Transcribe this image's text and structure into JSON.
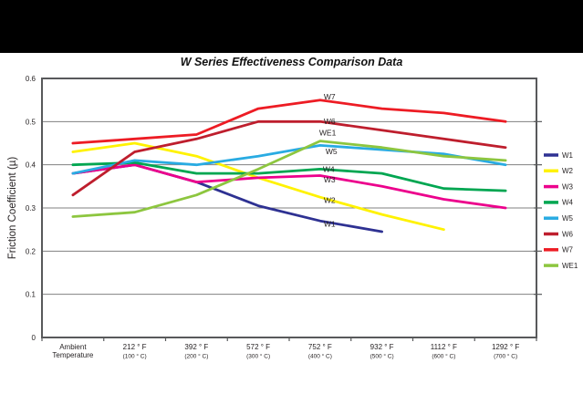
{
  "page": {
    "top_bar_color": "#000000",
    "background": "#ffffff"
  },
  "chart_data": {
    "type": "line",
    "title": "W Series Effectiveness Comparison Data",
    "xlabel": "",
    "ylabel": "Friction Coefficient (µ)",
    "ylim": [
      0,
      0.6
    ],
    "yticks": [
      "0",
      "0.1",
      "0.2",
      "0.3",
      "0.4",
      "0.5",
      "0.6"
    ],
    "grid": "horizontal",
    "legend_position": "right",
    "colors": {
      "grid": "#808080",
      "border": "#58595B",
      "text": "#231F20"
    },
    "categories": [
      {
        "l1": "Ambient",
        "l2": "Temperature",
        "small": false
      },
      {
        "l1": "212 ° F",
        "l2": "(100 ° C)",
        "small": true
      },
      {
        "l1": "392 ° F",
        "l2": "(200 ° C)",
        "small": true
      },
      {
        "l1": "572 ° F",
        "l2": "(300 ° C)",
        "small": true
      },
      {
        "l1": "752 ° F",
        "l2": "(400 ° C)",
        "small": true
      },
      {
        "l1": "932 ° F",
        "l2": "(500 ° C)",
        "small": true
      },
      {
        "l1": "1112 ° F",
        "l2": "(600 ° C)",
        "small": true
      },
      {
        "l1": "1292 ° F",
        "l2": "(700 ° C)",
        "small": true
      }
    ],
    "series": [
      {
        "name": "W1",
        "color": "#2E3192",
        "values": [
          0.38,
          0.4,
          0.36,
          0.305,
          0.27,
          0.245,
          null,
          null
        ]
      },
      {
        "name": "W2",
        "color": "#FFF200",
        "values": [
          0.43,
          0.45,
          0.42,
          0.37,
          0.325,
          0.285,
          0.25,
          null
        ]
      },
      {
        "name": "W3",
        "color": "#EC008C",
        "values": [
          0.38,
          0.4,
          0.36,
          0.37,
          0.375,
          0.35,
          0.32,
          0.3
        ]
      },
      {
        "name": "W4",
        "color": "#00A651",
        "values": [
          0.4,
          0.405,
          0.38,
          0.38,
          0.39,
          0.38,
          0.345,
          0.34
        ]
      },
      {
        "name": "W5",
        "color": "#29ABE2",
        "values": [
          0.38,
          0.41,
          0.4,
          0.42,
          0.445,
          0.435,
          0.425,
          0.4
        ]
      },
      {
        "name": "W6",
        "color": "#BE1E2D",
        "values": [
          0.33,
          0.43,
          0.46,
          0.5,
          0.5,
          0.48,
          0.46,
          0.44
        ]
      },
      {
        "name": "W7",
        "color": "#ED1C24",
        "values": [
          0.45,
          0.46,
          0.47,
          0.53,
          0.55,
          0.53,
          0.52,
          0.5
        ]
      },
      {
        "name": "WE1",
        "color": "#8DC63F",
        "values": [
          0.28,
          0.29,
          0.33,
          0.39,
          0.455,
          0.44,
          0.42,
          0.41
        ]
      }
    ],
    "annotations": [
      {
        "text": "W7",
        "ci": 4,
        "dx": 4,
        "v": 0.558
      },
      {
        "text": "W6",
        "ci": 4,
        "dx": 4,
        "v": 0.501
      },
      {
        "text": "WE1",
        "ci": 4,
        "dx": -1,
        "v": 0.474
      },
      {
        "text": "W5",
        "ci": 4,
        "dx": 6,
        "v": 0.431
      },
      {
        "text": "W4",
        "ci": 4,
        "dx": 3,
        "v": 0.39
      },
      {
        "text": "W3",
        "ci": 4,
        "dx": 4,
        "v": 0.366
      },
      {
        "text": "W2",
        "ci": 4,
        "dx": 4,
        "v": 0.318
      },
      {
        "text": "W1",
        "ci": 4,
        "dx": 4,
        "v": 0.263
      }
    ]
  }
}
